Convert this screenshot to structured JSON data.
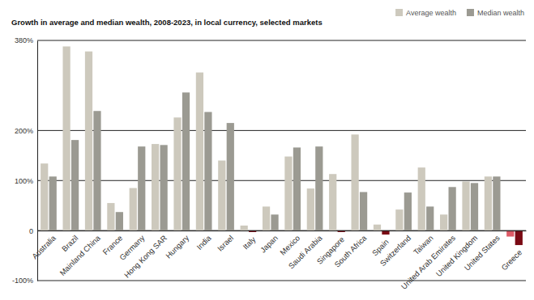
{
  "chart_data": {
    "type": "bar",
    "title": "Growth in average and median wealth, 2008-2023, in local currency, selected markets",
    "categories": [
      "Australia",
      "Brazil",
      "Mainland China",
      "France",
      "Germany",
      "Hong Kong SAR",
      "Hungary",
      "India",
      "Israel",
      "Italy",
      "Japan",
      "Mexico",
      "Saudi Arabia",
      "Singapore",
      "South Africa",
      "Spain",
      "Switzerland",
      "Taiwan",
      "United Arab Emirates",
      "United Kingdom",
      "United States",
      "Greece"
    ],
    "series": [
      {
        "name": "Average wealth",
        "color": "#cdc9bd",
        "colors": [
          "#cdc9bd",
          "#cdc9bd",
          "#cdc9bd",
          "#cdc9bd",
          "#cdc9bd",
          "#cdc9bd",
          "#cdc9bd",
          "#cdc9bd",
          "#cdc9bd",
          "#cdc9bd",
          "#cdc9bd",
          "#cdc9bd",
          "#cdc9bd",
          "#cdc9bd",
          "#cdc9bd",
          "#cdc9bd",
          "#cdc9bd",
          "#cdc9bd",
          "#cdc9bd",
          "#cdc9bd",
          "#cdc9bd",
          "#dd5a66"
        ],
        "values": [
          134,
          368,
          358,
          55,
          85,
          173,
          226,
          316,
          140,
          10,
          48,
          148,
          84,
          113,
          192,
          12,
          42,
          126,
          32,
          98,
          108,
          -12
        ]
      },
      {
        "name": "Median wealth",
        "color": "#9b9a92",
        "colors": [
          "#9b9a92",
          "#9b9a92",
          "#9b9a92",
          "#9b9a92",
          "#9b9a92",
          "#9b9a92",
          "#9b9a92",
          "#9b9a92",
          "#9b9a92",
          "#7a0a14",
          "#9b9a92",
          "#9b9a92",
          "#9b9a92",
          "#7a0a14",
          "#9b9a92",
          "#7a0a14",
          "#9b9a92",
          "#9b9a92",
          "#9b9a92",
          "#9b9a92",
          "#9b9a92",
          "#7a0a14"
        ],
        "values": [
          108,
          181,
          239,
          37,
          168,
          171,
          276,
          237,
          215,
          -3,
          32,
          166,
          168,
          -3,
          77,
          -8,
          76,
          48,
          87,
          95,
          108,
          -29
        ]
      }
    ],
    "ylim": [
      -100,
      380
    ],
    "yticks": [
      {
        "value": -100,
        "label": "-100%"
      },
      0,
      {
        "value": 100,
        "label": "100%"
      },
      {
        "value": 200,
        "label": "200%"
      },
      {
        "value": 380,
        "label": "380%"
      }
    ],
    "grid": true,
    "legend": "top-right"
  }
}
